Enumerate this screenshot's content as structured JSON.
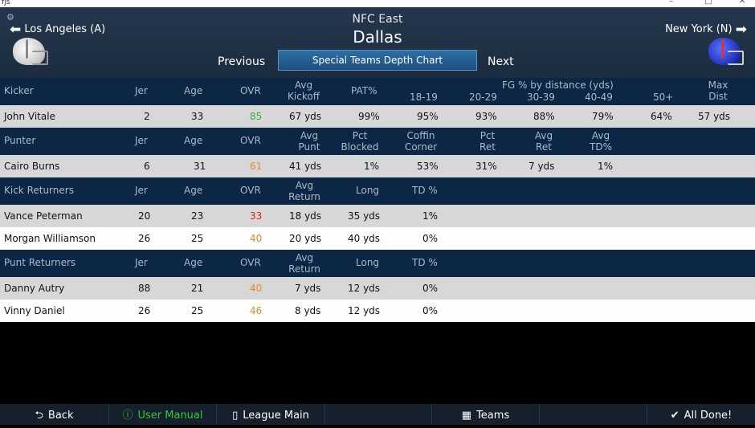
{
  "window": {
    "app_icon": "fjs",
    "minimize": "–",
    "maximize": "□",
    "close": "✕"
  },
  "header": {
    "conference": "NFC East",
    "team": "Dallas",
    "prev_team": "Los Angeles (A)",
    "next_team": "New York (N)",
    "previous_label": "Previous",
    "next_label": "Next",
    "view_label": "Special Teams Depth Chart"
  },
  "kicker": {
    "headers": {
      "pos": "Kicker",
      "jer": "Jer",
      "age": "Age",
      "ovr": "OVR",
      "kickoff1": "Avg",
      "kickoff2": "Kickoff",
      "pat": "PAT%",
      "fg_title": "FG % by distance (yds)",
      "fg1": "18-19",
      "fg2": "20-29",
      "fg3": "30-39",
      "fg4": "40-49",
      "fg5": "50+",
      "max1": "Max",
      "max2": "Dist"
    },
    "rows": [
      {
        "name": "John Vitale",
        "jer": "2",
        "age": "33",
        "ovr": "85",
        "kickoff": "67 yds",
        "pat": "99%",
        "fg1": "95%",
        "fg2": "93%",
        "fg3": "88%",
        "fg4": "79%",
        "fg5": "64%",
        "max": "57 yds"
      }
    ]
  },
  "punter": {
    "headers": {
      "pos": "Punter",
      "jer": "Jer",
      "age": "Age",
      "ovr": "OVR",
      "avg1": "Avg",
      "avg2": "Punt",
      "blk1": "Pct",
      "blk2": "Blocked",
      "cc1": "Coffin",
      "cc2": "Corner",
      "ret1": "Pct",
      "ret2": "Ret",
      "aret1": "Avg",
      "aret2": "Ret",
      "td1": "Avg",
      "td2": "TD%"
    },
    "rows": [
      {
        "name": "Cairo Burns",
        "jer": "6",
        "age": "31",
        "ovr": "61",
        "avg": "41 yds",
        "blocked": "1%",
        "coffin": "53%",
        "pct_ret": "31%",
        "avg_ret": "7 yds",
        "avg_td": "1%"
      }
    ]
  },
  "kick_returners": {
    "headers": {
      "pos": "Kick Returners",
      "jer": "Jer",
      "age": "Age",
      "ovr": "OVR",
      "ret1": "Avg",
      "ret2": "Return",
      "long": "Long",
      "td": "TD %"
    },
    "rows": [
      {
        "name": "Vance Peterman",
        "jer": "20",
        "age": "23",
        "ovr": "33",
        "ret": "18 yds",
        "long": "35 yds",
        "td": "1%"
      },
      {
        "name": "Morgan Williamson",
        "jer": "26",
        "age": "25",
        "ovr": "40",
        "ret": "20 yds",
        "long": "40 yds",
        "td": "0%"
      }
    ]
  },
  "punt_returners": {
    "headers": {
      "pos": "Punt Returners",
      "jer": "Jer",
      "age": "Age",
      "ovr": "OVR",
      "ret1": "Avg",
      "ret2": "Return",
      "long": "Long",
      "td": "TD %"
    },
    "rows": [
      {
        "name": "Danny Autry",
        "jer": "88",
        "age": "21",
        "ovr": "40",
        "ret": "7 yds",
        "long": "12 yds",
        "td": "0%"
      },
      {
        "name": "Vinny Daniel",
        "jer": "26",
        "age": "25",
        "ovr": "46",
        "ret": "8 yds",
        "long": "12 yds",
        "td": "0%"
      }
    ]
  },
  "colors": {
    "ovr_high": "#3fa83f",
    "ovr_mid": "#e08a2e",
    "ovr_low": "#d92020"
  },
  "bottom": {
    "back": "Back",
    "manual": "User Manual",
    "league": "League Main",
    "teams": "Teams",
    "done": "All Done!"
  }
}
